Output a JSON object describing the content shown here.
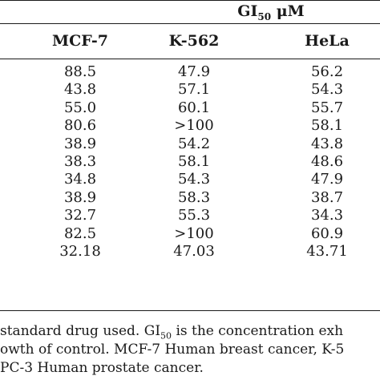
{
  "table": {
    "span_header": {
      "text": "GI",
      "sub": "50",
      "unit": " μM"
    },
    "columns": [
      "MCF-7",
      "K-562",
      "HeLa"
    ],
    "rows": [
      [
        "88.5",
        "47.9",
        "56.2"
      ],
      [
        "43.8",
        "57.1",
        "54.3"
      ],
      [
        "55.0",
        "60.1",
        "55.7"
      ],
      [
        "80.6",
        ">100",
        "58.1"
      ],
      [
        "38.9",
        "54.2",
        "43.8"
      ],
      [
        "38.3",
        "58.1",
        "48.6"
      ],
      [
        "34.8",
        "54.3",
        "47.9"
      ],
      [
        "38.9",
        "58.3",
        "38.7"
      ],
      [
        "32.7",
        "55.3",
        "34.3"
      ],
      [
        "82.5",
        ">100",
        "60.9"
      ],
      [
        "32.18",
        "47.03",
        "43.71"
      ]
    ]
  },
  "footnotes": {
    "line1_a": "standard drug used. GI",
    "line1_sub": "50",
    "line1_b": " is the concentration exh",
    "line2": "owth of control. MCF-7 Human breast cancer, K-5",
    "line3": "PC-3 Human prostate cancer."
  }
}
